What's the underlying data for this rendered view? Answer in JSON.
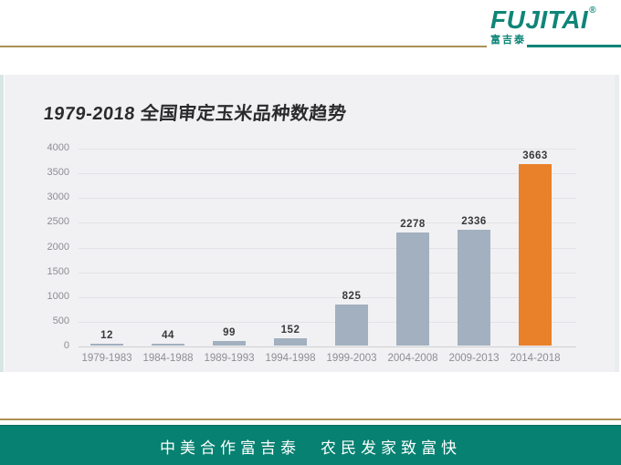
{
  "logo": {
    "brand": "FUJITAI",
    "registered": "®",
    "brand_cn": "富吉泰",
    "brand_color": "#0f8577",
    "gold_line_color": "#ab9254"
  },
  "chart_data": {
    "type": "bar",
    "title": "1979-2018 全国审定玉米品种数趋势",
    "categories": [
      "1979-1983",
      "1984-1988",
      "1989-1993",
      "1994-1998",
      "1999-2003",
      "2004-2008",
      "2009-2013",
      "2014-2018"
    ],
    "values": [
      12,
      44,
      99,
      152,
      825,
      2278,
      2336,
      3663
    ],
    "highlight_index": 7,
    "bar_color": "#a2b0bf",
    "highlight_color": "#e9802a",
    "ylim": [
      0,
      4000
    ],
    "yticks": [
      0,
      500,
      1000,
      1500,
      2000,
      2500,
      3000,
      3500,
      4000
    ],
    "grid": true,
    "legend": false,
    "value_labels": true,
    "panel_bg": "#f1f1f3",
    "xlabel": "",
    "ylabel": ""
  },
  "footer": {
    "slogan": "中美合作富吉泰　农民发家致富快",
    "banner_color": "#078171"
  }
}
